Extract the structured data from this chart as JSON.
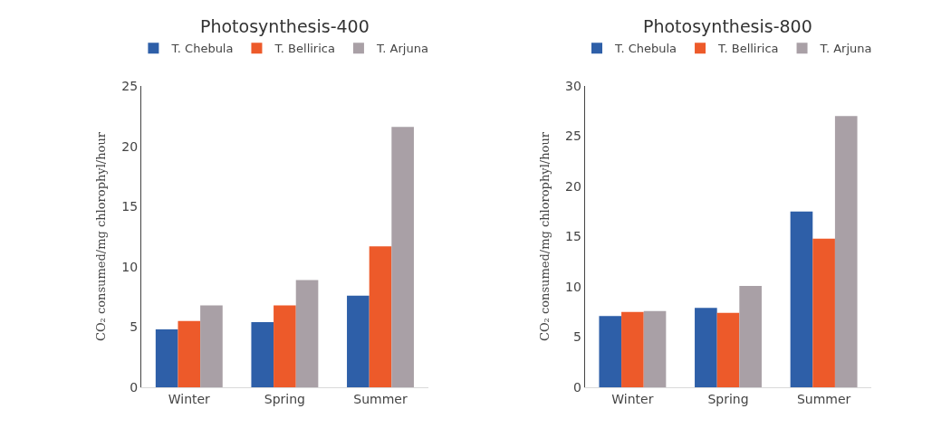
{
  "chart_data": [
    {
      "type": "bar",
      "title": "Photosynthesis-400",
      "ylabel": "CO₂ consumed/mg chlorophyl/hour",
      "categories": [
        "Winter",
        "Spring",
        "Summer"
      ],
      "ylim": [
        0,
        25
      ],
      "yticks": [
        0,
        5,
        10,
        15,
        20,
        25
      ],
      "grid": false,
      "legend": "top",
      "series": [
        {
          "name": "T. Chebula",
          "color": "#2e5fa8",
          "values": [
            4.8,
            5.4,
            7.6
          ]
        },
        {
          "name": "T. Bellirica",
          "color": "#ed5a2a",
          "values": [
            5.5,
            6.8,
            11.7
          ]
        },
        {
          "name": "T. Arjuna",
          "color": "#a9a0a6",
          "values": [
            6.8,
            8.9,
            21.6
          ]
        }
      ]
    },
    {
      "type": "bar",
      "title": "Photosynthesis-800",
      "ylabel": "CO₂ consumed/mg chlorophyl/hour",
      "categories": [
        "Winter",
        "Spring",
        "Summer"
      ],
      "ylim": [
        0,
        30
      ],
      "yticks": [
        0,
        5,
        10,
        15,
        20,
        25,
        30
      ],
      "grid": false,
      "legend": "top",
      "series": [
        {
          "name": "T. Chebula",
          "color": "#2e5fa8",
          "values": [
            7.1,
            7.9,
            17.5
          ]
        },
        {
          "name": "T. Bellirica",
          "color": "#ed5a2a",
          "values": [
            7.5,
            7.4,
            14.8
          ]
        },
        {
          "name": "T. Arjuna",
          "color": "#a9a0a6",
          "values": [
            7.6,
            10.1,
            27.0
          ]
        }
      ]
    }
  ]
}
